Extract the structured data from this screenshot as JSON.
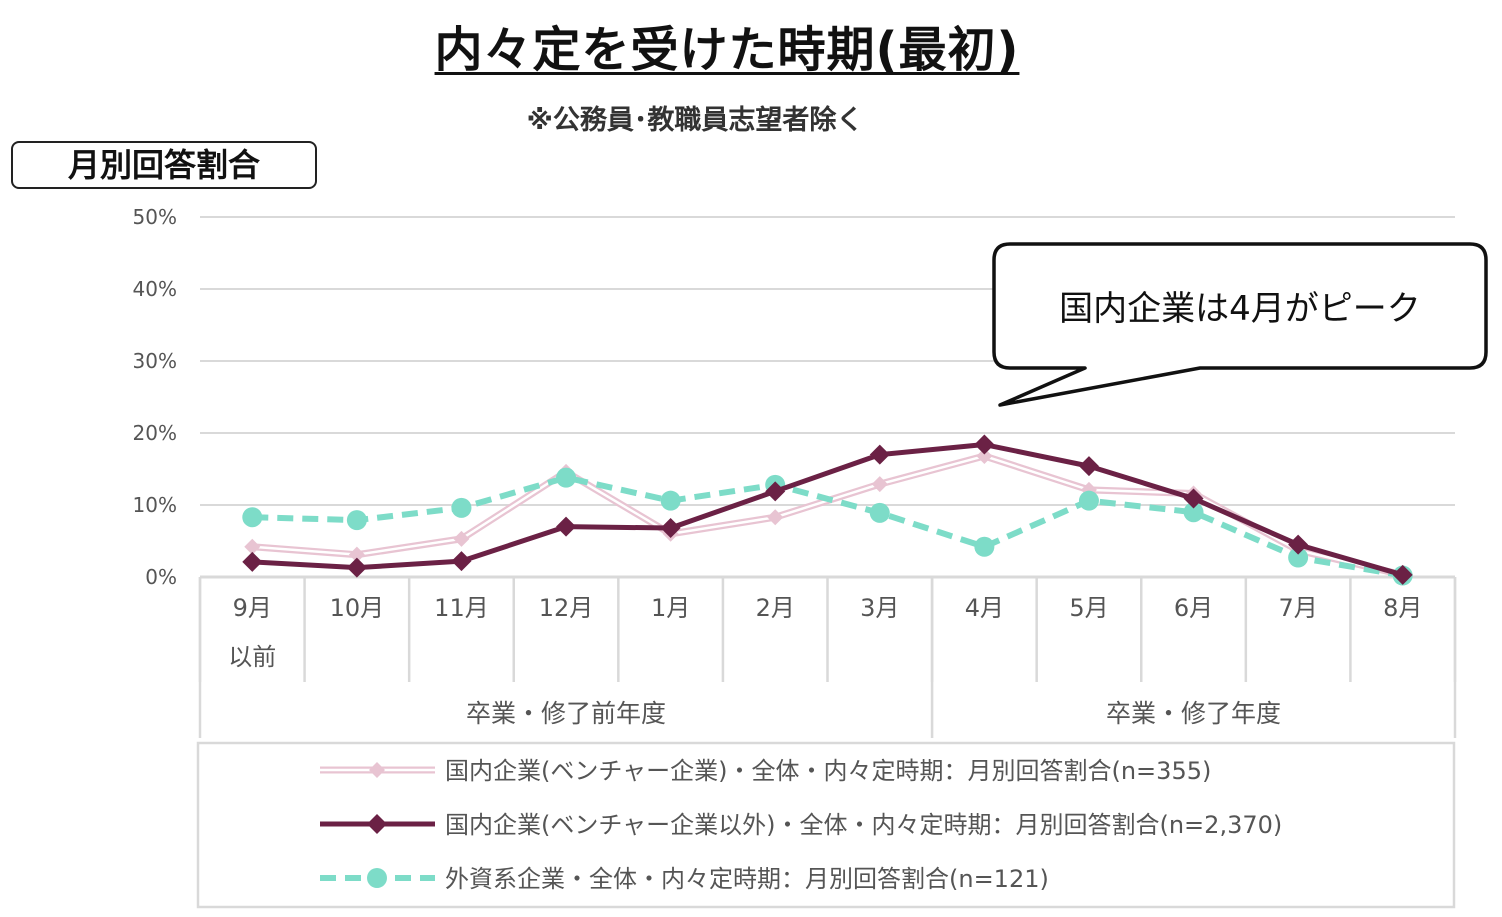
{
  "title": "内々定を受けた時期(最初)",
  "subtitle": "※公務員･教職員志望者除く",
  "badge": "月別回答割合",
  "callout": "国内企業は4月がピーク",
  "colors": {
    "pink": "#e8c4d2",
    "maroon": "#6b2145",
    "teal": "#7ddcc8",
    "grid": "#d9d9d9"
  },
  "chart_data": {
    "type": "line",
    "categories": [
      "9月\n以前",
      "10月",
      "11月",
      "12月",
      "1月",
      "2月",
      "3月",
      "4月",
      "5月",
      "6月",
      "7月",
      "8月"
    ],
    "category_groups": [
      {
        "label": "卒業・修了前年度",
        "span": 7
      },
      {
        "label": "卒業・修了年度",
        "span": 5
      }
    ],
    "yticks": [
      "0%",
      "10%",
      "20%",
      "30%",
      "40%",
      "50%"
    ],
    "ylim": [
      0,
      50
    ],
    "grid": true,
    "legend_position": "bottom",
    "series": [
      {
        "name": "国内企業(ベンチャー企業)・全体・内々定時期：月別回答割合(n=355)",
        "style": "thin-diamond",
        "values": [
          4.2,
          3.1,
          5.3,
          14.6,
          6.0,
          8.3,
          12.9,
          16.8,
          12.1,
          11.6,
          3.7,
          0.3
        ]
      },
      {
        "name": "国内企業(ベンチャー企業以外)・全体・内々定時期：月別回答割合(n=2,370)",
        "style": "thick-diamond",
        "values": [
          2.1,
          1.3,
          2.2,
          7.0,
          6.8,
          11.9,
          17.0,
          18.4,
          15.4,
          10.9,
          4.5,
          0.3
        ]
      },
      {
        "name": "外資系企業・全体・内々定時期：月別回答割合(n=121)",
        "style": "dashed-circle",
        "values": [
          8.3,
          7.9,
          9.6,
          13.8,
          10.6,
          12.8,
          8.9,
          4.2,
          10.6,
          9.0,
          2.7,
          0.2
        ]
      }
    ]
  }
}
